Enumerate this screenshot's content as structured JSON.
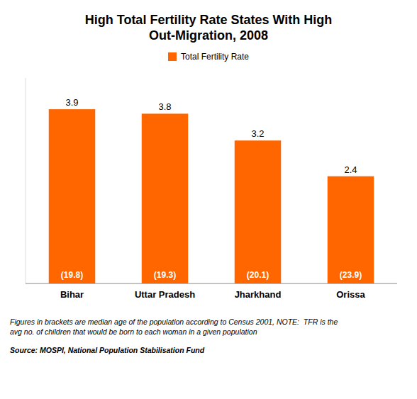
{
  "chart_data": {
    "type": "bar",
    "title": "High Total Fertility Rate States With High\nOut-Migration, 2008",
    "categories": [
      "Bihar",
      "Uttar Pradesh",
      "Jharkhand",
      "Orissa"
    ],
    "series": [
      {
        "name": "Total Fertility Rate",
        "color": "#FF6600",
        "values": [
          3.9,
          3.8,
          3.2,
          2.4
        ]
      }
    ],
    "annotations": [
      "(19.8)",
      "(19.3)",
      "(20.1)",
      "(23.9)"
    ],
    "footnotes": [
      "Figures in brackets are median age of the population according to Census 2001, NOTE:  TFR is the\navg no. of children that would be born to each woman in a given population",
      "Source: MOSPI, National Population Stabilisation Fund"
    ],
    "ylim": [
      0,
      4.6
    ],
    "data_labels": true,
    "tick_labels": "x",
    "legend": "top"
  }
}
